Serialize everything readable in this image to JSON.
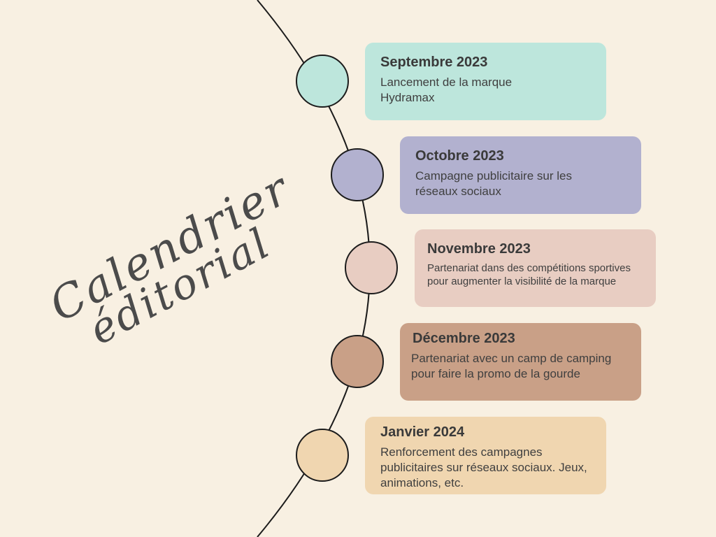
{
  "title": {
    "line1": "Calendrier",
    "line2": "éditorial"
  },
  "colors": {
    "background": "#f8f0e2",
    "line": "#1c1c1c",
    "text": "#3f3f3f"
  },
  "events": [
    {
      "date": "Septembre 2023",
      "text": "Lancement de la marque Hydramax",
      "color": "#bde6dc"
    },
    {
      "date": "Octobre 2023",
      "text": "Campagne publicitaire sur les réseaux sociaux",
      "color": "#b2b1cf"
    },
    {
      "date": "Novembre 2023",
      "text": "Partenariat dans des compétitions sportives pour augmenter la visibilité de la marque",
      "color": "#e8cdc2"
    },
    {
      "date": "Décembre 2023",
      "text": "Partenariat avec un camp de camping pour faire la promo de la gourde",
      "color": "#c9a087"
    },
    {
      "date": "Janvier 2024",
      "text": "Renforcement des campagnes publicitaires sur réseaux sociaux. Jeux, animations, etc.",
      "color": "#f0d6b0"
    }
  ]
}
